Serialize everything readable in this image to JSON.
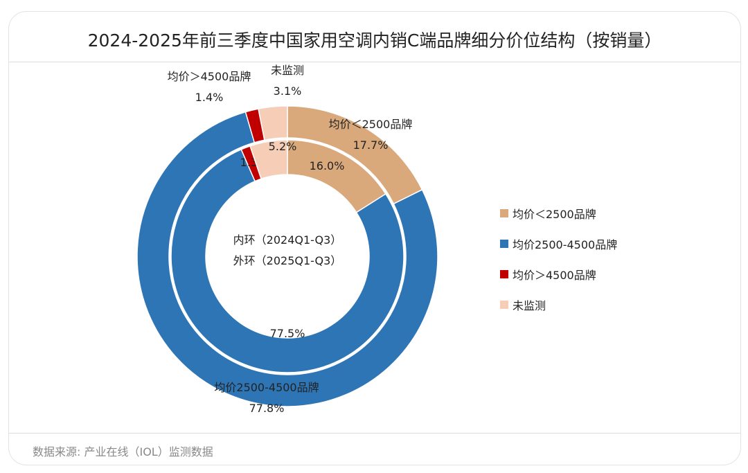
{
  "title": "2024-2025年前三季度中国家用空调内销C端品牌细分价位结构（按销量）",
  "source": "数据来源: 产业在线（IOL）监测数据",
  "chart_data": {
    "type": "donut",
    "title": "2024-2025年前三季度中国家用空调内销C端品牌细分价位结构（按销量）",
    "categories": [
      "均价＜2500品牌",
      "均价2500-4500品牌",
      "均价＞4500品牌",
      "未监测"
    ],
    "colors": [
      "#D9A97C",
      "#2E75B6",
      "#C00000",
      "#F6CDB6"
    ],
    "series": [
      {
        "name": "内环（2024Q1-Q3）",
        "ring": "inner",
        "values": [
          16.0,
          77.5,
          1.3,
          5.2
        ]
      },
      {
        "name": "外环（2025Q1-Q3）",
        "ring": "outer",
        "values": [
          17.7,
          77.8,
          1.4,
          3.1
        ]
      }
    ],
    "unit": "%",
    "legend": "right"
  }
}
